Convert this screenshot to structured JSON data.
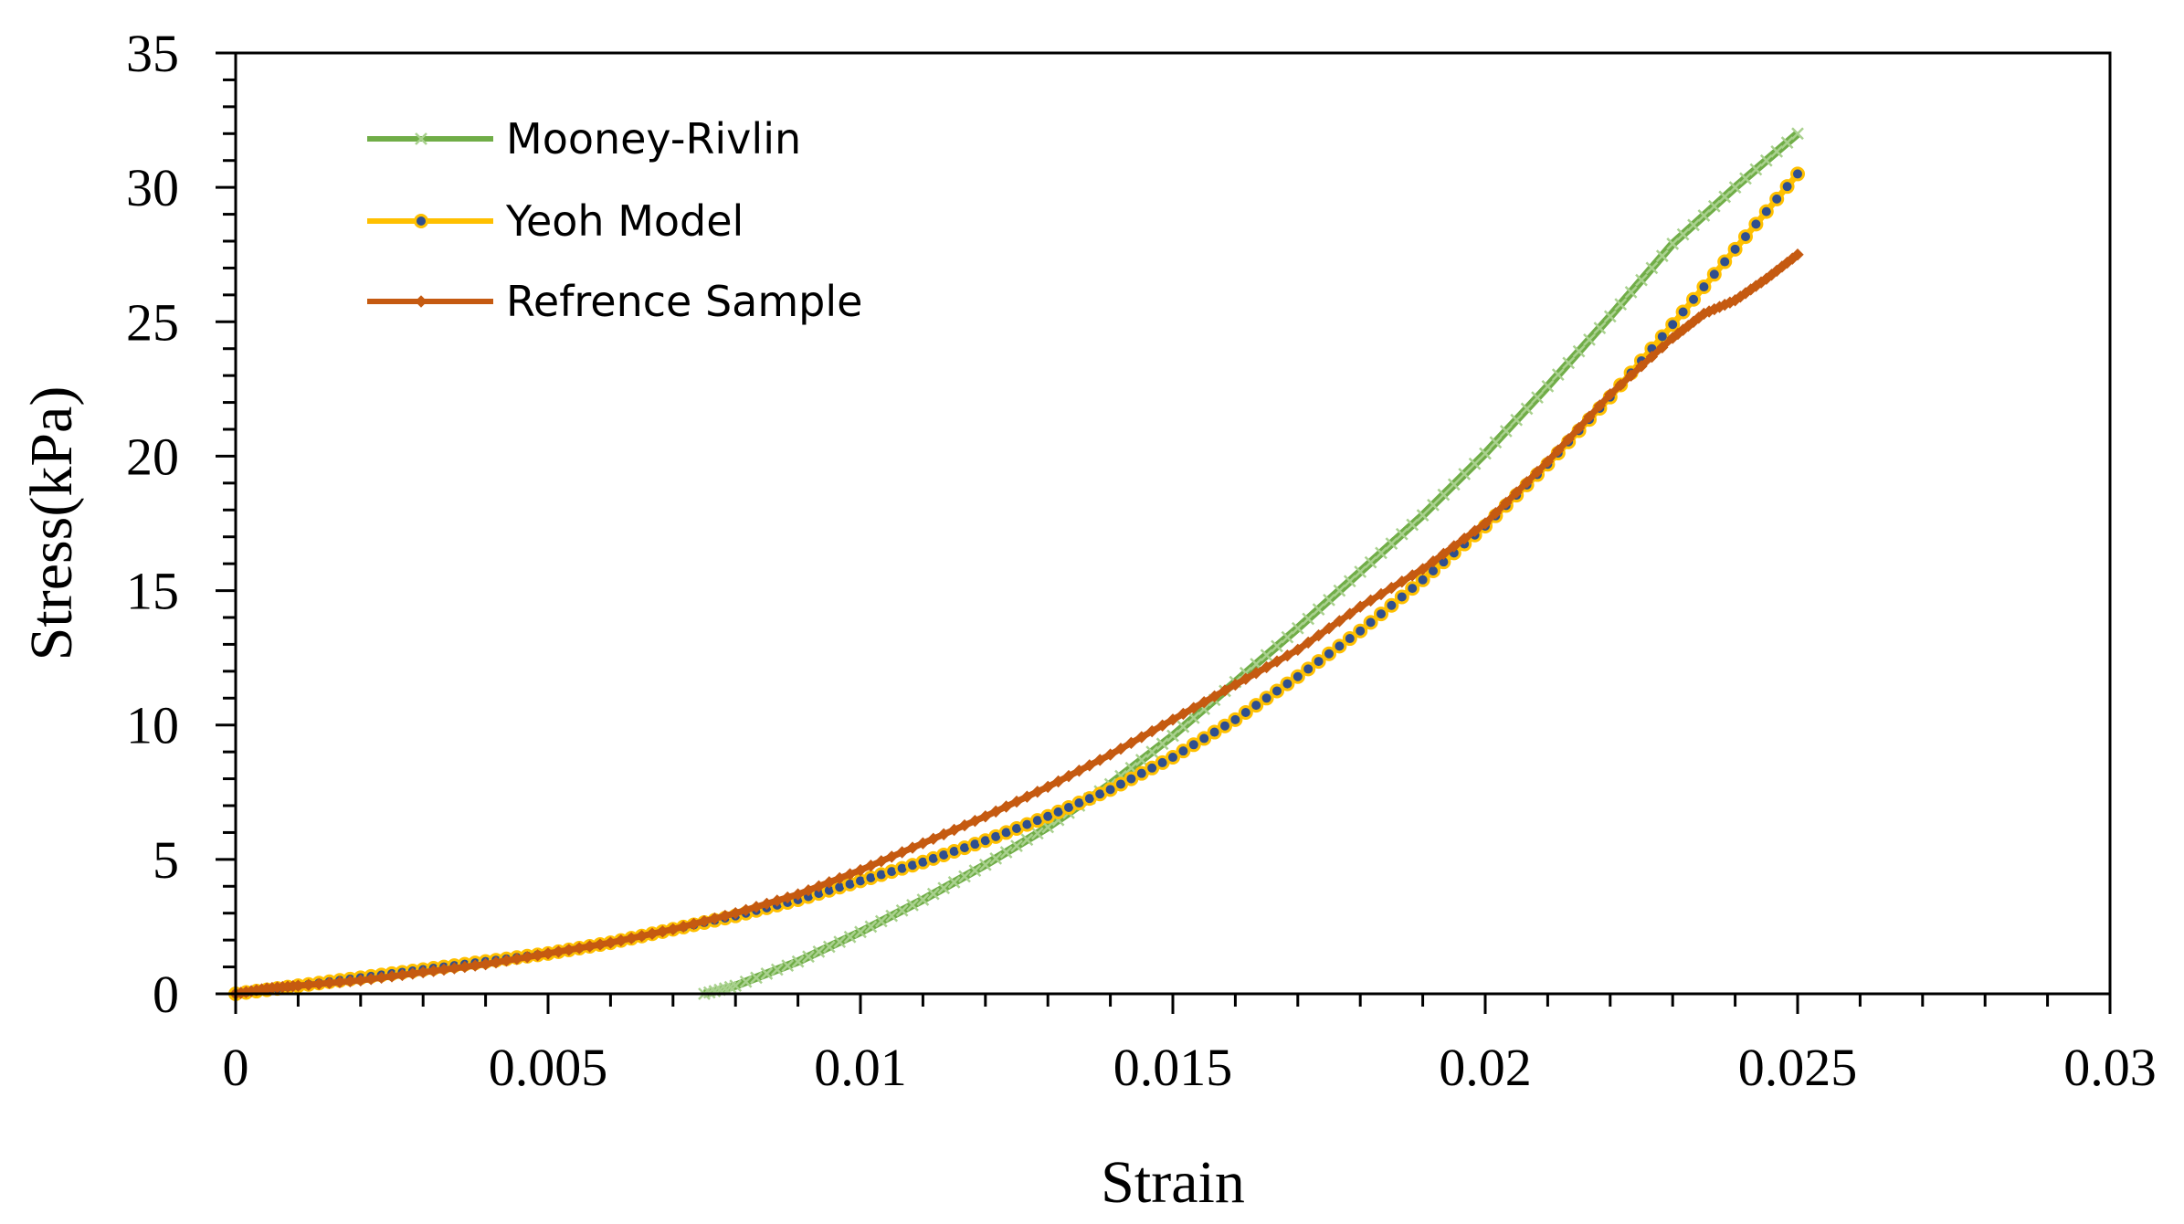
{
  "chart_data": {
    "type": "line",
    "title": "",
    "xlabel": "Strain",
    "ylabel": "Stress(kPa)",
    "xlim": [
      0,
      0.03
    ],
    "ylim": [
      0,
      35
    ],
    "xticks": [
      0,
      0.005,
      0.01,
      0.015,
      0.02,
      0.025,
      0.03
    ],
    "xtick_labels": [
      "0",
      "0.005",
      "0.01",
      "0.015",
      "0.02",
      "0.025",
      "0.03"
    ],
    "yticks": [
      0,
      5,
      10,
      15,
      20,
      25,
      30,
      35
    ],
    "ytick_labels": [
      "0",
      "5",
      "10",
      "15",
      "20",
      "25",
      "30",
      "35"
    ],
    "grid": false,
    "legend_position": "top-left",
    "series": [
      {
        "name": "Mooney-Rivlin",
        "color": "#70ad47",
        "marker": "x",
        "x": [
          0.0075,
          0.008,
          0.009,
          0.01,
          0.011,
          0.012,
          0.013,
          0.014,
          0.015,
          0.016,
          0.017,
          0.018,
          0.019,
          0.02,
          0.021,
          0.022,
          0.023,
          0.024,
          0.025
        ],
        "y": [
          0.0,
          0.3,
          1.2,
          2.3,
          3.5,
          4.8,
          6.2,
          7.8,
          9.6,
          11.6,
          13.6,
          15.7,
          17.8,
          20.1,
          22.6,
          25.2,
          27.9,
          30.0,
          32.0
        ]
      },
      {
        "name": "Yeoh Model",
        "color": "#ffc000",
        "marker": "circle",
        "x": [
          0.0,
          0.001,
          0.002,
          0.003,
          0.004,
          0.005,
          0.006,
          0.007,
          0.008,
          0.009,
          0.01,
          0.011,
          0.012,
          0.013,
          0.014,
          0.015,
          0.016,
          0.017,
          0.018,
          0.019,
          0.02,
          0.021,
          0.022,
          0.023,
          0.024,
          0.025
        ],
        "y": [
          0.0,
          0.3,
          0.6,
          0.9,
          1.2,
          1.5,
          1.9,
          2.4,
          2.9,
          3.5,
          4.2,
          4.9,
          5.7,
          6.6,
          7.6,
          8.8,
          10.2,
          11.8,
          13.5,
          15.4,
          17.4,
          19.7,
          22.2,
          24.9,
          27.7,
          30.5
        ]
      },
      {
        "name": "Refrence Sample",
        "color": "#c55a11",
        "marker": "diamond",
        "x": [
          0.0,
          0.0005,
          0.001,
          0.002,
          0.003,
          0.004,
          0.005,
          0.006,
          0.007,
          0.008,
          0.009,
          0.01,
          0.011,
          0.012,
          0.013,
          0.014,
          0.015,
          0.016,
          0.017,
          0.018,
          0.019,
          0.02,
          0.021,
          0.022,
          0.023,
          0.0235,
          0.024,
          0.0245,
          0.025
        ],
        "y": [
          0.0,
          0.2,
          0.3,
          0.5,
          0.8,
          1.1,
          1.5,
          1.9,
          2.4,
          3.0,
          3.7,
          4.6,
          5.6,
          6.6,
          7.7,
          8.9,
          10.2,
          11.5,
          12.8,
          14.4,
          15.8,
          17.5,
          19.8,
          22.3,
          24.4,
          25.3,
          25.8,
          26.6,
          27.5
        ]
      }
    ]
  }
}
